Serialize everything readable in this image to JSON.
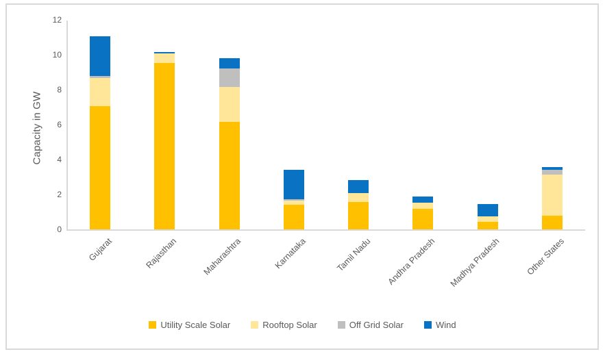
{
  "chart_data": {
    "type": "bar",
    "stacked": true,
    "ylabel": "Capacity in GW",
    "ylim": [
      0,
      12
    ],
    "yticks": [
      0,
      2,
      4,
      6,
      8,
      10,
      12
    ],
    "grid": false,
    "legend_position": "bottom",
    "categories": [
      "Gujarat",
      "Rajasthan",
      "Maharashtra",
      "Karnataka",
      "Tamil Nadu",
      "Andhra Pradesh",
      "Madhya Pradesh",
      "Other States"
    ],
    "series": [
      {
        "name": "Utility Scale Solar",
        "color": "#FFC000",
        "values": [
          7.1,
          9.55,
          6.2,
          1.45,
          1.6,
          1.2,
          0.45,
          0.8
        ]
      },
      {
        "name": "Rooftop Solar",
        "color": "#FFE699",
        "values": [
          1.6,
          0.55,
          2.0,
          0.2,
          0.5,
          0.35,
          0.3,
          2.35
        ]
      },
      {
        "name": "Off Grid Solar",
        "color": "#BFBFBF",
        "values": [
          0.1,
          0.0,
          1.05,
          0.1,
          0.0,
          0.0,
          0.0,
          0.3
        ]
      },
      {
        "name": "Wind",
        "color": "#0A72C2",
        "values": [
          2.3,
          0.1,
          0.6,
          1.7,
          0.75,
          0.35,
          0.72,
          0.15
        ]
      }
    ],
    "totals": [
      11.1,
      10.2,
      9.85,
      3.45,
      2.85,
      1.9,
      1.47,
      3.6
    ],
    "colors": {
      "axis_line": "#D9D9D9",
      "frame_border": "#D9D9D9",
      "text": "#595959"
    }
  }
}
